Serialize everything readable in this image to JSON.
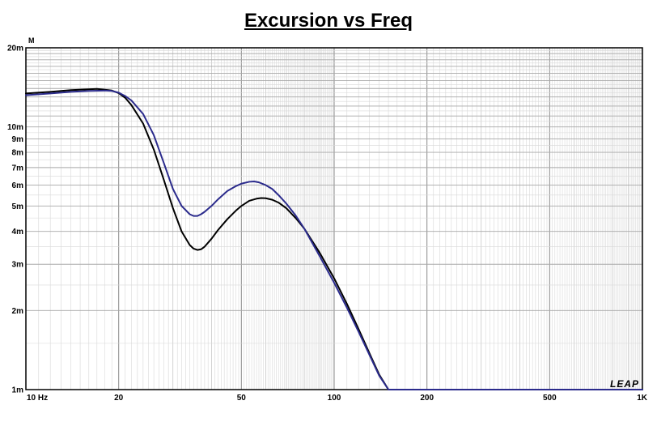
{
  "chart_data": {
    "type": "line",
    "title": "Excursion vs Freq",
    "y_unit": "M",
    "x_scale": "log",
    "y_scale": "log",
    "xlim": [
      10,
      1000
    ],
    "ylim": [
      0.001,
      0.02
    ],
    "grid": true,
    "x_ticks": [
      {
        "value": 10,
        "label": "10  Hz"
      },
      {
        "value": 20,
        "label": "20"
      },
      {
        "value": 50,
        "label": "50"
      },
      {
        "value": 100,
        "label": "100"
      },
      {
        "value": 200,
        "label": "200"
      },
      {
        "value": 500,
        "label": "500"
      },
      {
        "value": 1000,
        "label": "1K"
      }
    ],
    "y_ticks": [
      {
        "value": 0.02,
        "label": "20m"
      },
      {
        "value": 0.01,
        "label": "10m"
      },
      {
        "value": 0.009,
        "label": "9m"
      },
      {
        "value": 0.008,
        "label": "8m"
      },
      {
        "value": 0.007,
        "label": "7m"
      },
      {
        "value": 0.006,
        "label": "6m"
      },
      {
        "value": 0.005,
        "label": "5m"
      },
      {
        "value": 0.004,
        "label": "4m"
      },
      {
        "value": 0.003,
        "label": "3m"
      },
      {
        "value": 0.002,
        "label": "2m"
      },
      {
        "value": 0.001,
        "label": "1m"
      }
    ],
    "series": [
      {
        "color": "#000000",
        "points": [
          [
            10,
            0.0134
          ],
          [
            12,
            0.0136
          ],
          [
            14,
            0.0138
          ],
          [
            16,
            0.0139
          ],
          [
            17,
            0.01395
          ],
          [
            18,
            0.01385
          ],
          [
            19,
            0.01375
          ],
          [
            20,
            0.01345
          ],
          [
            21,
            0.0129
          ],
          [
            22,
            0.0121
          ],
          [
            24,
            0.0103
          ],
          [
            26,
            0.0082
          ],
          [
            28,
            0.0063
          ],
          [
            30,
            0.0049
          ],
          [
            32,
            0.004
          ],
          [
            34,
            0.00355
          ],
          [
            35,
            0.00344
          ],
          [
            36,
            0.0034
          ],
          [
            37,
            0.00342
          ],
          [
            38,
            0.0035
          ],
          [
            40,
            0.00375
          ],
          [
            42,
            0.00405
          ],
          [
            45,
            0.00445
          ],
          [
            48,
            0.0048
          ],
          [
            50,
            0.005
          ],
          [
            53,
            0.00523
          ],
          [
            56,
            0.00533
          ],
          [
            58,
            0.00536
          ],
          [
            60,
            0.00535
          ],
          [
            63,
            0.00528
          ],
          [
            66,
            0.00515
          ],
          [
            70,
            0.0049
          ],
          [
            75,
            0.0045
          ],
          [
            80,
            0.0041
          ],
          [
            90,
            0.0033
          ],
          [
            100,
            0.00265
          ],
          [
            110,
            0.00212
          ],
          [
            120,
            0.0017
          ],
          [
            130,
            0.00138
          ],
          [
            140,
            0.00114
          ],
          [
            150,
            0.001
          ],
          [
            1000,
            0.001
          ]
        ]
      },
      {
        "color": "#2b2b8c",
        "points": [
          [
            10,
            0.0132
          ],
          [
            12,
            0.0134
          ],
          [
            14,
            0.0136
          ],
          [
            16,
            0.0137
          ],
          [
            18,
            0.01375
          ],
          [
            19,
            0.0137
          ],
          [
            20,
            0.0135
          ],
          [
            21,
            0.0131
          ],
          [
            22,
            0.0126
          ],
          [
            24,
            0.0112
          ],
          [
            26,
            0.0093
          ],
          [
            28,
            0.0073
          ],
          [
            30,
            0.0058
          ],
          [
            32,
            0.005
          ],
          [
            34,
            0.00465
          ],
          [
            35,
            0.00458
          ],
          [
            36,
            0.00458
          ],
          [
            37,
            0.00465
          ],
          [
            38,
            0.00475
          ],
          [
            40,
            0.005
          ],
          [
            42,
            0.0053
          ],
          [
            45,
            0.0057
          ],
          [
            48,
            0.00595
          ],
          [
            50,
            0.00608
          ],
          [
            53,
            0.00618
          ],
          [
            55,
            0.0062
          ],
          [
            57,
            0.00615
          ],
          [
            60,
            0.006
          ],
          [
            63,
            0.0058
          ],
          [
            66,
            0.0055
          ],
          [
            70,
            0.0051
          ],
          [
            75,
            0.0046
          ],
          [
            80,
            0.0041
          ],
          [
            90,
            0.0032
          ],
          [
            100,
            0.00255
          ],
          [
            110,
            0.00205
          ],
          [
            120,
            0.00166
          ],
          [
            130,
            0.00136
          ],
          [
            140,
            0.00113
          ],
          [
            150,
            0.001
          ],
          [
            1000,
            0.001
          ]
        ]
      }
    ]
  },
  "watermark": "LEAP"
}
